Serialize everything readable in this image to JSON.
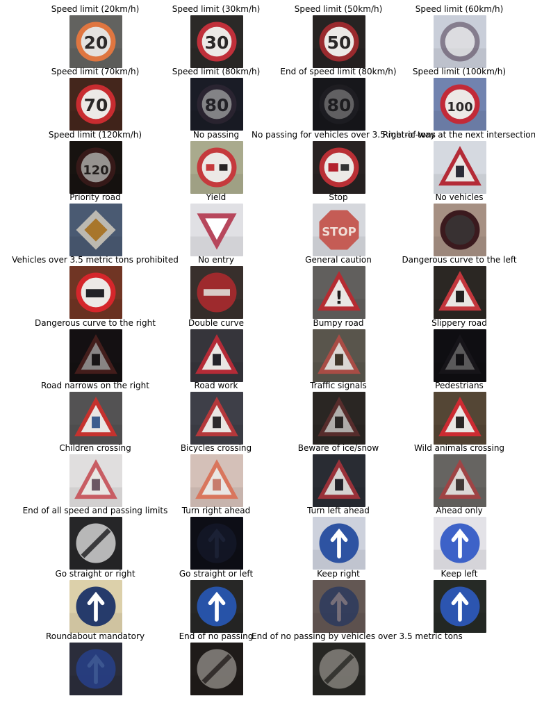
{
  "figure": {
    "columns": 4,
    "items": [
      {
        "label": "Speed limit (20km/h)",
        "shape": "circle",
        "text": "20",
        "bg": "#6b6b68",
        "fg": "#f3e9dc",
        "border": "#e7783f",
        "dim": 0.95
      },
      {
        "label": "Speed limit (30km/h)",
        "shape": "circle",
        "text": "30",
        "bg": "#2f2d2b",
        "fg": "#e7e4df",
        "border": "#c0303a",
        "dim": 1.0
      },
      {
        "label": "Speed limit (50km/h)",
        "shape": "circle",
        "text": "50",
        "bg": "#2b2725",
        "fg": "#dcd6d0",
        "border": "#9a2a2e",
        "dim": 1.0
      },
      {
        "label": "Speed limit (60km/h)",
        "shape": "circle",
        "text": "",
        "bg": "#dbe0ec",
        "fg": "#5e5f78",
        "border": "#4f3b52",
        "dim": 0.55
      },
      {
        "label": "Speed limit (70km/h)",
        "shape": "circle",
        "text": "70",
        "bg": "#4a2a1f",
        "fg": "#efe7e2",
        "border": "#c82c30",
        "dim": 1.0
      },
      {
        "label": "Speed limit (80km/h)",
        "shape": "circle",
        "text": "80",
        "bg": "#1d1f2a",
        "fg": "#4a4b5e",
        "border": "#3a2c3c",
        "dim": 0.5
      },
      {
        "label": "End of speed limit (80km/h)",
        "shape": "circle",
        "text": "80",
        "bg": "#1a1a1e",
        "fg": "#2c2b30",
        "border": "#2b2a30",
        "dim": 0.35
      },
      {
        "label": "Speed limit (100km/h)",
        "shape": "circle",
        "text": "100",
        "bg": "#7b8fbe",
        "fg": "#f4f3f5",
        "border": "#c22a38",
        "dim": 1.0
      },
      {
        "label": "Speed limit (120km/h)",
        "shape": "circle",
        "text": "120",
        "bg": "#1a1512",
        "fg": "#4a3d34",
        "border": "#4b1f1e",
        "dim": 0.6
      },
      {
        "label": "No passing",
        "shape": "circle",
        "text": "",
        "bg": "#b8b99a",
        "fg": "#272323",
        "border": "#c53a3d",
        "dim": 1.0
      },
      {
        "label": "No passing for vehicles over 3.5 metric tons",
        "shape": "circle",
        "text": "",
        "bg": "#2c2525",
        "fg": "#b3202c",
        "border": "#b92f35",
        "dim": 1.0
      },
      {
        "label": "Right-of-way at the next intersection",
        "shape": "triangle",
        "text": "",
        "bg": "#e8ecf4",
        "fg": "#2c2c36",
        "border": "#b42b37",
        "dim": 1.0
      },
      {
        "label": "Priority road",
        "shape": "diamond",
        "text": "",
        "bg": "#51627c",
        "fg": "#b37a24",
        "border": "#c9c4b8",
        "dim": 0.9
      },
      {
        "label": "Yield",
        "shape": "yield",
        "text": "",
        "bg": "#f3f3f8",
        "fg": "#ffffff",
        "border": "#b7475c",
        "dim": 1.0
      },
      {
        "label": "Stop",
        "shape": "octagon",
        "text": "STOP",
        "bg": "#e8eaef",
        "fg": "#f0ddd6",
        "border": "#c55c55",
        "dim": 1.0
      },
      {
        "label": "No vehicles",
        "shape": "circle",
        "text": "",
        "bg": "#b59d8f",
        "fg": "#383132",
        "border": "#3b1a1e",
        "dim": 1.0
      },
      {
        "label": "Vehicles over 3.5 metric tons prohibited",
        "shape": "circle",
        "text": "",
        "bg": "#7a3a28",
        "fg": "#222227",
        "border": "#d5262b",
        "dim": 1.0
      },
      {
        "label": "No entry",
        "shape": "noentry",
        "text": "",
        "bg": "#3d3430",
        "fg": "#d8cbc6",
        "border": "#9e2a2d",
        "dim": 1.0
      },
      {
        "label": "General caution",
        "shape": "triangle",
        "text": "!",
        "bg": "#6a6865",
        "fg": "#1e1b1b",
        "border": "#b52c32",
        "dim": 1.0
      },
      {
        "label": "Dangerous curve to the left",
        "shape": "triangle",
        "text": "",
        "bg": "#2f2b27",
        "fg": "#222020",
        "border": "#c2363c",
        "dim": 1.0
      },
      {
        "label": "Dangerous curve to the right",
        "shape": "triangle",
        "text": "",
        "bg": "#161214",
        "fg": "#1e1a1a",
        "border": "#6b2a25",
        "dim": 0.55
      },
      {
        "label": "Double curve",
        "shape": "triangle",
        "text": "",
        "bg": "#3b3a41",
        "fg": "#24232a",
        "border": "#b42b37",
        "dim": 1.0
      },
      {
        "label": "Bumpy road",
        "shape": "triangle",
        "text": "",
        "bg": "#615d53",
        "fg": "#3e3427",
        "border": "#b24c45",
        "dim": 0.9
      },
      {
        "label": "Slippery road",
        "shape": "triangle",
        "text": "",
        "bg": "#111014",
        "fg": "#19171a",
        "border": "#262229",
        "dim": 0.35
      },
      {
        "label": "Road narrows on the right",
        "shape": "triangle",
        "text": "",
        "bg": "#5b5a5b",
        "fg": "#3c5d8e",
        "border": "#c5322e",
        "dim": 1.0
      },
      {
        "label": "Road work",
        "shape": "triangle",
        "text": "",
        "bg": "#44454f",
        "fg": "#2c2a2c",
        "border": "#b4383b",
        "dim": 1.0
      },
      {
        "label": "Traffic signals",
        "shape": "triangle",
        "text": "",
        "bg": "#2e2a26",
        "fg": "#2b2725",
        "border": "#6b3131",
        "dim": 0.7
      },
      {
        "label": "Pedestrians",
        "shape": "triangle",
        "text": "",
        "bg": "#5c4c3a",
        "fg": "#2a2625",
        "border": "#cc2b32",
        "dim": 1.0
      },
      {
        "label": "Children crossing",
        "shape": "triangle",
        "text": "",
        "bg": "#f4f1f1",
        "fg": "#6b5763",
        "border": "#c85d63",
        "dim": 1.0
      },
      {
        "label": "Bicycles crossing",
        "shape": "triangle",
        "text": "",
        "bg": "#e7d1c8",
        "fg": "#c77c6d",
        "border": "#d9765d",
        "dim": 1.0
      },
      {
        "label": "Beware of ice/snow",
        "shape": "triangle",
        "text": "",
        "bg": "#2d3038",
        "fg": "#23232a",
        "border": "#a6323a",
        "dim": 0.9
      },
      {
        "label": "Wild animals crossing",
        "shape": "triangle",
        "text": "",
        "bg": "#6f6d6a",
        "fg": "#3c3532",
        "border": "#a64142",
        "dim": 0.9
      },
      {
        "label": "End of all speed and passing limits",
        "shape": "endlimit",
        "text": "",
        "bg": "#2a2a2c",
        "fg": "#c8c8c8",
        "border": "#3d3d3f",
        "dim": 0.9
      },
      {
        "label": "Turn right ahead",
        "shape": "bluecircle",
        "text": "",
        "bg": "#0f1018",
        "fg": "#2e3a5c",
        "border": "#1a2038",
        "dim": 0.45
      },
      {
        "label": "Turn left ahead",
        "shape": "bluecircle",
        "text": "",
        "bg": "#dfe3ef",
        "fg": "#ffffff",
        "border": "#2e53a2",
        "dim": 1.0
      },
      {
        "label": "Ahead only",
        "shape": "bluecircle",
        "text": "",
        "bg": "#f7f6fb",
        "fg": "#ffffff",
        "border": "#3d62c8",
        "dim": 1.0
      },
      {
        "label": "Go straight or right",
        "shape": "bluecircle",
        "text": "",
        "bg": "#efe2b9",
        "fg": "#ffffff",
        "border": "#263b6b",
        "dim": 1.0
      },
      {
        "label": "Go straight or left",
        "shape": "bluecircle",
        "text": "",
        "bg": "#2b2b2a",
        "fg": "#ffffff",
        "border": "#2753a8",
        "dim": 1.0
      },
      {
        "label": "Keep right",
        "shape": "bluecircle",
        "text": "",
        "bg": "#6c5f5b",
        "fg": "#7b7480",
        "border": "#2c3a5e",
        "dim": 0.85
      },
      {
        "label": "Keep left",
        "shape": "bluecircle",
        "text": "",
        "bg": "#2a2e2a",
        "fg": "#ffffff",
        "border": "#2c55b0",
        "dim": 1.0
      },
      {
        "label": "Roundabout mandatory",
        "shape": "bluecircle",
        "text": "",
        "bg": "#2f3140",
        "fg": "#3e5b9a",
        "border": "#273f85",
        "dim": 0.9
      },
      {
        "label": "End of no passing",
        "shape": "endlimit",
        "text": "",
        "bg": "#221e1c",
        "fg": "#8f8b86",
        "border": "#3a3533",
        "dim": 0.8
      },
      {
        "label": "End of no passing by vehicles over 3.5 metric tons",
        "shape": "endlimit",
        "text": "",
        "bg": "#2a2a27",
        "fg": "#8a8781",
        "border": "#3b3a36",
        "dim": 0.8
      }
    ]
  }
}
